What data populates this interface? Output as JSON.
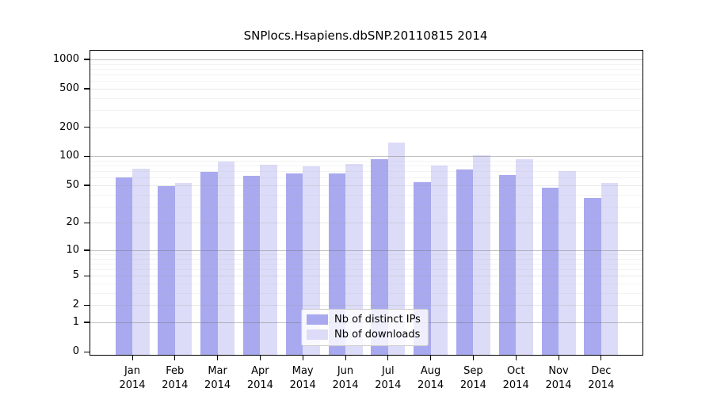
{
  "title": "SNPlocs.Hsapiens.dbSNP.20110815 2014",
  "chart_data": {
    "type": "bar",
    "title": "SNPlocs.Hsapiens.dbSNP.20110815 2014",
    "xlabel": "",
    "ylabel": "",
    "year": "2014",
    "categories": [
      "Jan",
      "Feb",
      "Mar",
      "Apr",
      "May",
      "Jun",
      "Jul",
      "Aug",
      "Sep",
      "Oct",
      "Nov",
      "Dec"
    ],
    "series": [
      {
        "name": "Nb of distinct IPs",
        "color": "#a9a9ef",
        "values": [
          61,
          49,
          69,
          63,
          66,
          66,
          94,
          54,
          73,
          64,
          47,
          37
        ]
      },
      {
        "name": "Nb of downloads",
        "color": "#dcdcf8",
        "values": [
          74,
          53,
          89,
          82,
          79,
          84,
          138,
          81,
          103,
          94,
          71,
          53
        ]
      }
    ],
    "yscale": "log1p",
    "yticks": [
      0,
      1,
      2,
      5,
      10,
      20,
      50,
      100,
      200,
      500,
      1000
    ],
    "ylim": [
      0,
      1230
    ],
    "grid": "on",
    "legend_position": "bottom-center",
    "colors": {
      "axis": "#000000",
      "grid_major": "#c8c8c8",
      "grid_minor": "#f0f0f0",
      "background": "#ffffff"
    }
  }
}
